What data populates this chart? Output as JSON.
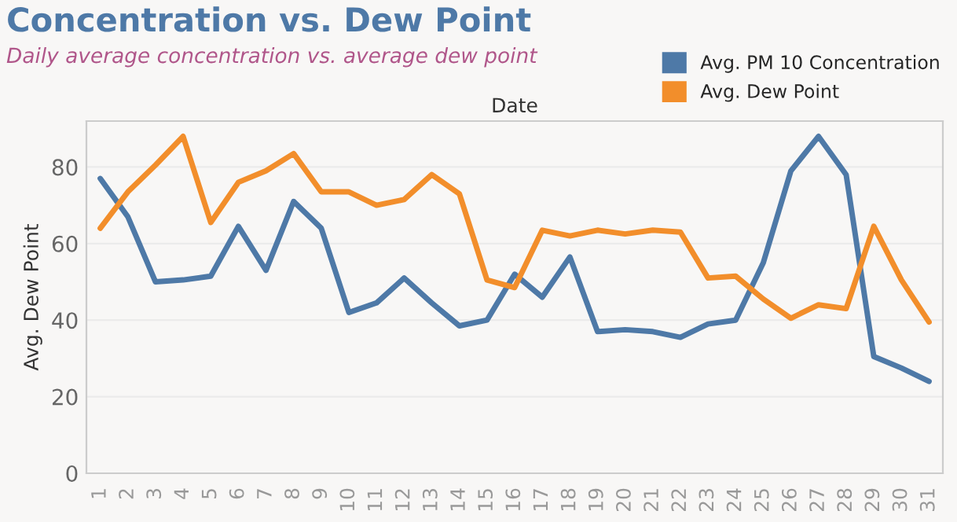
{
  "chart_data": {
    "type": "line",
    "title": "Concentration vs. Dew Point",
    "subtitle": "Daily average concentration vs. average dew point",
    "xlabel": "Date",
    "ylabel": "Avg. Dew Point",
    "categories": [
      "1",
      "2",
      "3",
      "4",
      "5",
      "6",
      "7",
      "8",
      "9",
      "10",
      "11",
      "12",
      "13",
      "14",
      "15",
      "16",
      "17",
      "18",
      "19",
      "20",
      "21",
      "22",
      "23",
      "24",
      "25",
      "26",
      "27",
      "28",
      "29",
      "30",
      "31"
    ],
    "series": [
      {
        "name": "Avg. PM 10 Concentration",
        "color": "#4e79a7",
        "values": [
          77,
          67,
          50,
          50.5,
          51.5,
          64.5,
          53,
          71,
          64,
          42,
          44.5,
          51,
          44.5,
          38.5,
          40,
          52,
          46,
          56.5,
          37,
          37.5,
          37,
          35.5,
          39,
          40,
          55,
          79,
          88,
          78,
          30.5,
          27.5,
          24
        ]
      },
      {
        "name": "Avg. Dew Point",
        "color": "#f28e2b",
        "values": [
          64,
          73.5,
          80.5,
          88,
          65.5,
          76,
          79,
          83.5,
          73.5,
          73.5,
          70,
          71.5,
          78,
          73,
          50.5,
          48.5,
          63.5,
          62,
          63.5,
          62.5,
          63.5,
          63,
          51,
          51.5,
          45.5,
          40.5,
          44,
          43,
          64.5,
          50.5,
          39.5
        ]
      }
    ],
    "ylim": [
      0,
      92
    ],
    "yticks": [
      0,
      20,
      40,
      60,
      80
    ],
    "grid": "y",
    "legend": "top right",
    "marker": "none",
    "line_style": "solid"
  }
}
